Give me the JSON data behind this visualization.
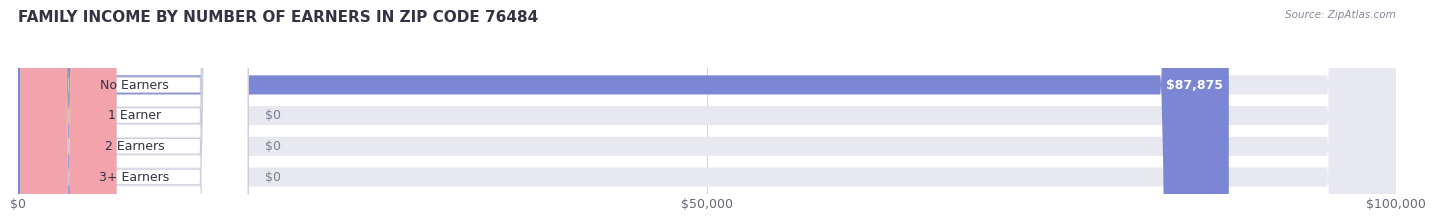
{
  "title": "FAMILY INCOME BY NUMBER OF EARNERS IN ZIP CODE 76484",
  "source": "Source: ZipAtlas.com",
  "categories": [
    "No Earners",
    "1 Earner",
    "2 Earners",
    "3+ Earners"
  ],
  "values": [
    87875,
    0,
    0,
    0
  ],
  "bar_colors": [
    "#7b86d4",
    "#f4a0b0",
    "#f5c98a",
    "#f4a0b0"
  ],
  "bar_bg_color": "#e8e8f0",
  "xlim": [
    0,
    100000
  ],
  "xticks": [
    0,
    50000,
    100000
  ],
  "xtick_labels": [
    "$0",
    "$50,000",
    "$100,000"
  ],
  "value_label_color": "#ffffff",
  "zero_label_color": "#7a8090",
  "title_fontsize": 11,
  "tick_fontsize": 9,
  "bar_label_fontsize": 9,
  "category_fontsize": 9,
  "background_color": "#ffffff"
}
